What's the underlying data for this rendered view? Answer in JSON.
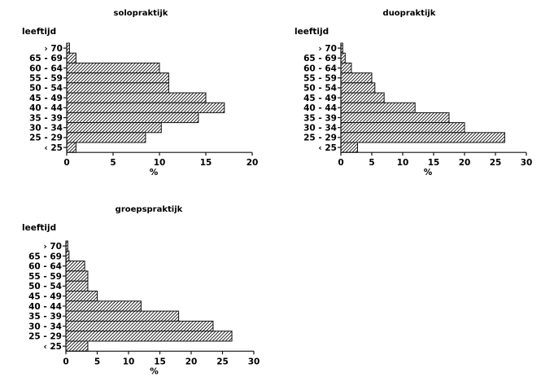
{
  "chart_data": [
    {
      "type": "bar",
      "orientation": "horizontal",
      "title": "solopraktijk",
      "ylabel": "leeftijd",
      "xlabel": "%",
      "categories": [
        "› 70",
        "65 - 69",
        "60 - 64",
        "55 - 59",
        "50 - 54",
        "45 - 49",
        "40 - 44",
        "35 - 39",
        "30 - 34",
        "25 - 29",
        "‹ 25"
      ],
      "values": [
        0.3,
        1.0,
        10.0,
        11.0,
        11.0,
        15.0,
        17.0,
        14.2,
        10.2,
        8.5,
        1.0
      ],
      "xlim": [
        0,
        20
      ],
      "xticks": [
        0,
        5,
        10,
        15,
        20
      ],
      "grid": false
    },
    {
      "type": "bar",
      "orientation": "horizontal",
      "title": "duopraktijk",
      "ylabel": "leeftijd",
      "xlabel": "%",
      "categories": [
        "› 70",
        "65 - 69",
        "60 - 64",
        "55 - 59",
        "50 - 54",
        "45 - 49",
        "40 - 44",
        "35 - 39",
        "30 - 34",
        "25 - 29",
        "‹ 25"
      ],
      "values": [
        0.3,
        0.7,
        1.7,
        5.0,
        5.5,
        7.0,
        12.0,
        17.5,
        20.0,
        26.5,
        2.7
      ],
      "xlim": [
        0,
        30
      ],
      "xticks": [
        0,
        5,
        10,
        15,
        20,
        25,
        30
      ],
      "grid": false
    },
    {
      "type": "bar",
      "orientation": "horizontal",
      "title": "groepspraktijk",
      "ylabel": "leeftijd",
      "xlabel": "%",
      "categories": [
        "› 70",
        "65 - 69",
        "60 - 64",
        "55 - 59",
        "50 - 54",
        "45 - 49",
        "40 - 44",
        "35 - 39",
        "30 - 34",
        "25 - 29",
        "‹ 25"
      ],
      "values": [
        0.3,
        0.5,
        3.0,
        3.5,
        3.5,
        5.0,
        12.0,
        18.0,
        23.5,
        26.5,
        3.5
      ],
      "xlim": [
        0,
        30
      ],
      "xticks": [
        0,
        5,
        10,
        15,
        20,
        25,
        30
      ],
      "grid": false
    }
  ]
}
